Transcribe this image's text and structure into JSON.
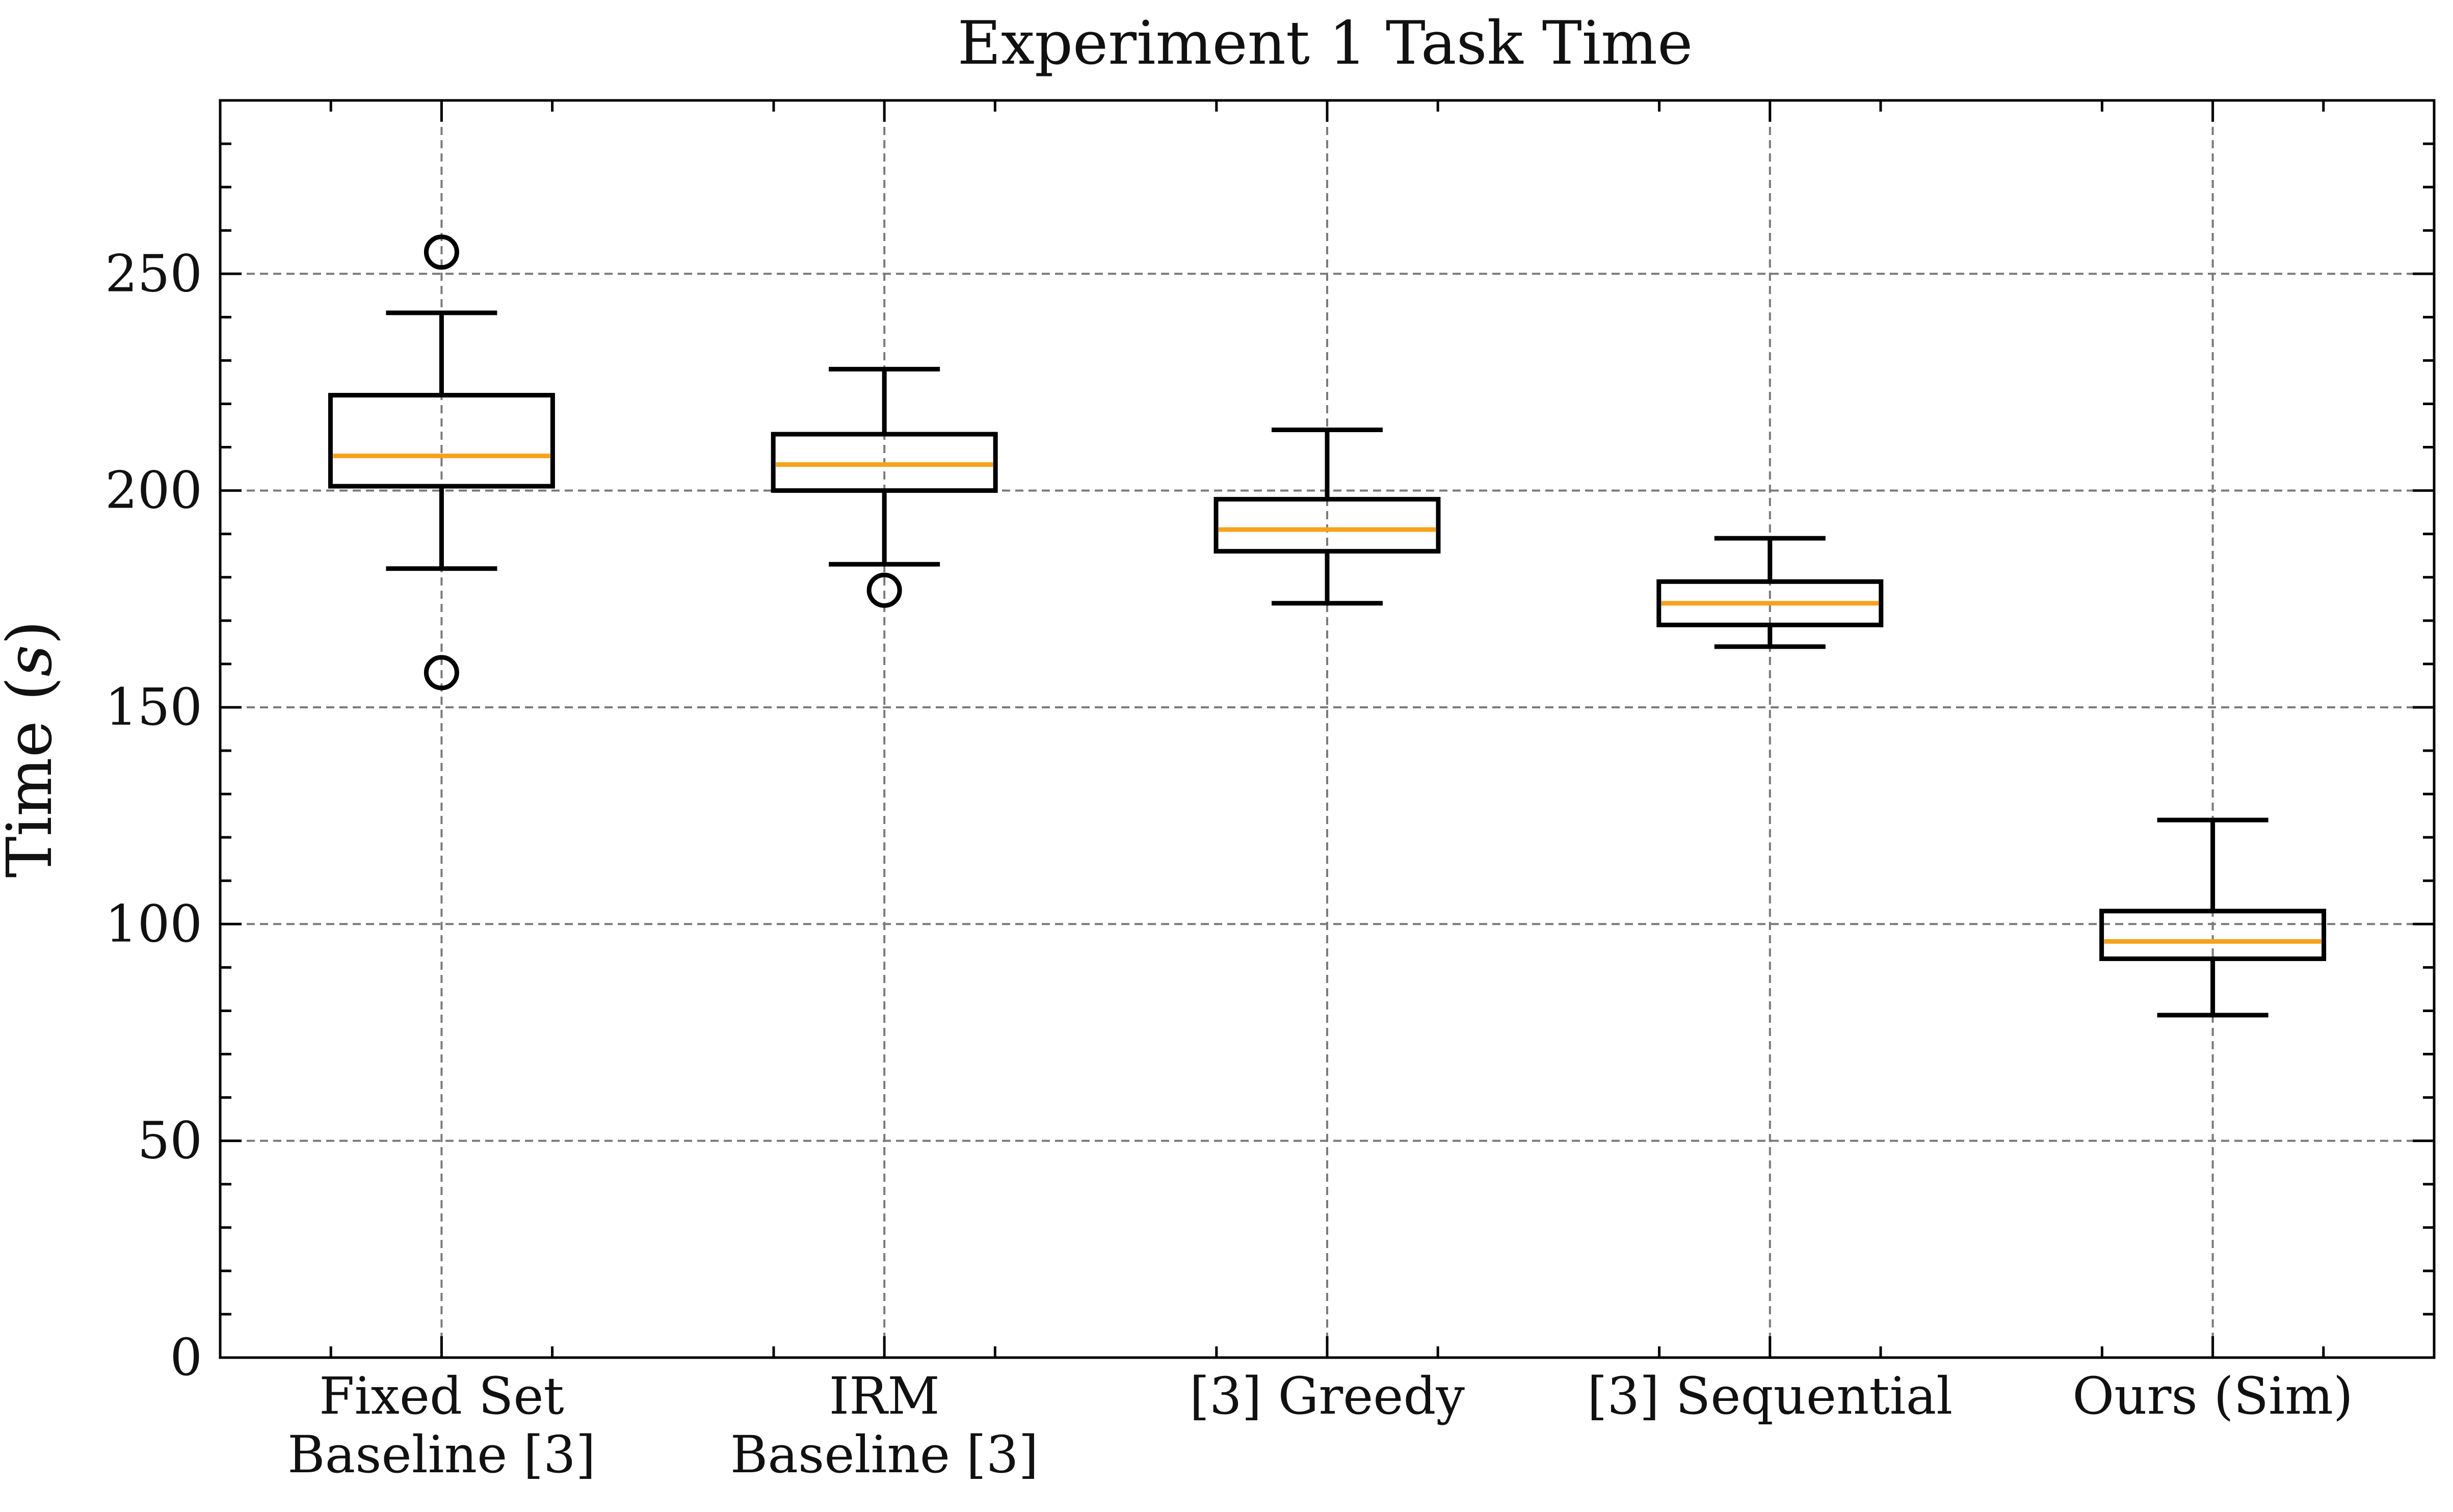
{
  "chart_data": {
    "type": "boxplot",
    "title": "Experiment 1 Task Time",
    "ylabel": "Time (s)",
    "ylabel_parts": {
      "prefix": "Time (",
      "variable": "s",
      "suffix": ")"
    },
    "xlabel": "",
    "ylim": [
      0,
      290
    ],
    "yticks": [
      0,
      50,
      100,
      150,
      200,
      250
    ],
    "ytick_labels": [
      "0",
      "50",
      "100",
      "150",
      "200",
      "250"
    ],
    "y_minor_step": 10,
    "grid": true,
    "categories": [
      {
        "lines": [
          "Fixed Set",
          "Baseline [3]"
        ],
        "q1": 201,
        "median": 208,
        "q3": 222,
        "whisker_low": 182,
        "whisker_high": 241,
        "outliers": [
          255,
          158
        ]
      },
      {
        "lines": [
          "IRM",
          "Baseline [3]"
        ],
        "q1": 200,
        "median": 206,
        "q3": 213,
        "whisker_low": 183,
        "whisker_high": 228,
        "outliers": [
          177
        ]
      },
      {
        "lines": [
          "[3] Greedy"
        ],
        "q1": 186,
        "median": 191,
        "q3": 198,
        "whisker_low": 174,
        "whisker_high": 214,
        "outliers": []
      },
      {
        "lines": [
          "[3] Sequential"
        ],
        "q1": 169,
        "median": 174,
        "q3": 179,
        "whisker_low": 164,
        "whisker_high": 189,
        "outliers": []
      },
      {
        "lines": [
          "Ours (Sim)"
        ],
        "q1": 92,
        "median": 96,
        "q3": 103,
        "whisker_low": 79,
        "whisker_high": 124,
        "outliers": []
      }
    ],
    "colors": {
      "median": "#f7a21b",
      "box": "#000000",
      "grid": "#7a7a7a"
    }
  }
}
